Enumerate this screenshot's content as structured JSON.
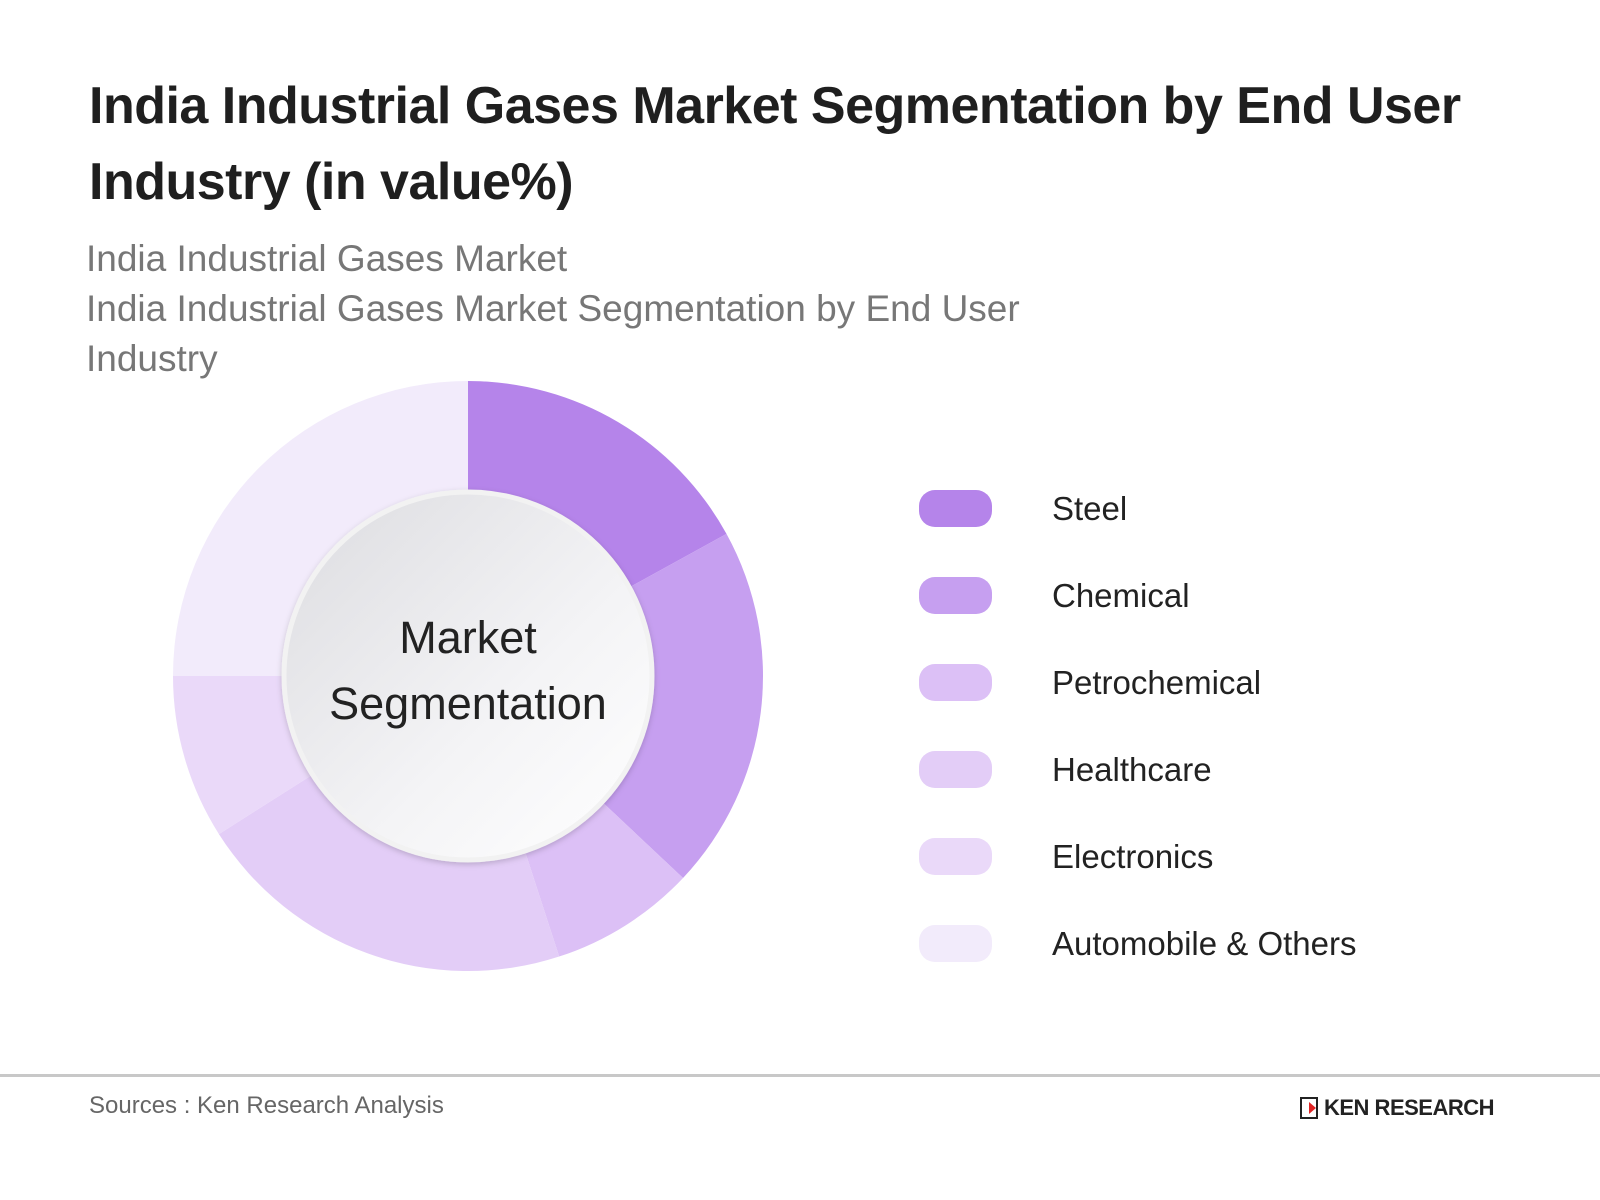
{
  "title": "India Industrial Gases Market Segmentation by End User Industry (in value%)",
  "subtitle_lines": [
    "India Industrial Gases Market",
    "India Industrial Gases Market Segmentation by End User Industry"
  ],
  "center_label": [
    "Market",
    "Segmentation"
  ],
  "chart_data": {
    "type": "pie",
    "donut": true,
    "title": "India Industrial Gases Market Segmentation by End User Industry (in value%)",
    "categories": [
      "Steel",
      "Chemical",
      "Petrochemical",
      "Healthcare",
      "Electronics",
      "Automobile & Others"
    ],
    "values": [
      17,
      20,
      8,
      21,
      9,
      25
    ],
    "colors": [
      "#b584ea",
      "#c69ff0",
      "#dcc0f6",
      "#e3cdf7",
      "#ead9f9",
      "#f2ebfb"
    ],
    "legend_placement": "right",
    "start_angle": "top, clockwise"
  },
  "footer": {
    "source": "Sources : Ken Research Analysis",
    "logo_text": "KEN RESEARCH"
  }
}
